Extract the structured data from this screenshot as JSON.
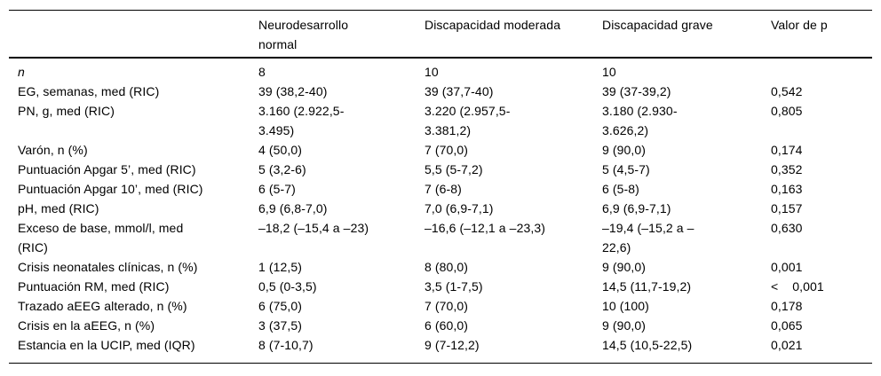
{
  "table": {
    "columns": [
      "",
      "Neurodesarrollo\nnormal",
      "Discapacidad moderada",
      "Discapacidad grave",
      "Valor de p"
    ],
    "rows": [
      {
        "label": "n",
        "label_italic": true,
        "values": [
          "8",
          "10",
          "10"
        ],
        "p": ""
      },
      {
        "label": "EG, semanas, med (RIC)",
        "label_italic": false,
        "values": [
          "39 (38,2-40)",
          "39 (37,7-40)",
          "39 (37-39,2)"
        ],
        "p": "0,542"
      },
      {
        "label": "PN, g, med (RIC)",
        "label_italic": false,
        "values": [
          "3.160 (2.922,5-\n3.495)",
          "3.220 (2.957,5-\n3.381,2)",
          "3.180 (2.930-\n3.626,2)"
        ],
        "p": "0,805"
      },
      {
        "label": "Varón, n (%)",
        "label_italic": false,
        "values": [
          "4 (50,0)",
          "7 (70,0)",
          "9 (90,0)"
        ],
        "p": "0,174"
      },
      {
        "label": "Puntuación Apgar 5’, med (RIC)",
        "label_italic": false,
        "values": [
          "5 (3,2-6)",
          "5,5 (5-7,2)",
          "5 (4,5-7)"
        ],
        "p": "0,352"
      },
      {
        "label": "Puntuación Apgar 10’, med (RIC)",
        "label_italic": false,
        "values": [
          "6 (5-7)",
          "7 (6-8)",
          "6 (5-8)"
        ],
        "p": "0,163"
      },
      {
        "label": "pH, med (RIC)",
        "label_italic": false,
        "values": [
          "6,9 (6,8-7,0)",
          "7,0 (6,9-7,1)",
          "6,9 (6,9-7,1)"
        ],
        "p": "0,157"
      },
      {
        "label": "Exceso de base, mmol/l, med\n(RIC)",
        "label_italic": false,
        "values": [
          "–18,2 (–15,4 a –23)",
          "–16,6 (–12,1 a –23,3)",
          "–19,4 (–15,2 a –\n22,6)"
        ],
        "p": "0,630"
      },
      {
        "label": "Crisis neonatales clínicas, n (%)",
        "label_italic": false,
        "values": [
          "1 (12,5)",
          "8 (80,0)",
          "9 (90,0)"
        ],
        "p": "0,001"
      },
      {
        "label": "Puntuación RM, med (RIC)",
        "label_italic": false,
        "values": [
          "0,5 (0-3,5)",
          "3,5 (1-7,5)",
          "14,5 (11,7-19,2)"
        ],
        "p": "<    0,001"
      },
      {
        "label": "Trazado aEEG alterado, n (%)",
        "label_italic": false,
        "values": [
          "6 (75,0)",
          "7 (70,0)",
          "10 (100)"
        ],
        "p": "0,178"
      },
      {
        "label": "Crisis en la aEEG, n (%)",
        "label_italic": false,
        "values": [
          "3 (37,5)",
          "6 (60,0)",
          "9 (90,0)"
        ],
        "p": "0,065"
      },
      {
        "label": "Estancia en la UCIP, med (IQR)",
        "label_italic": false,
        "values": [
          "8 (7-10,7)",
          "9 (7-12,2)",
          "14,5 (10,5-22,5)"
        ],
        "p": "0,021"
      }
    ],
    "colors": {
      "text": "#000000",
      "rule": "#000000",
      "background": "#ffffff"
    }
  }
}
